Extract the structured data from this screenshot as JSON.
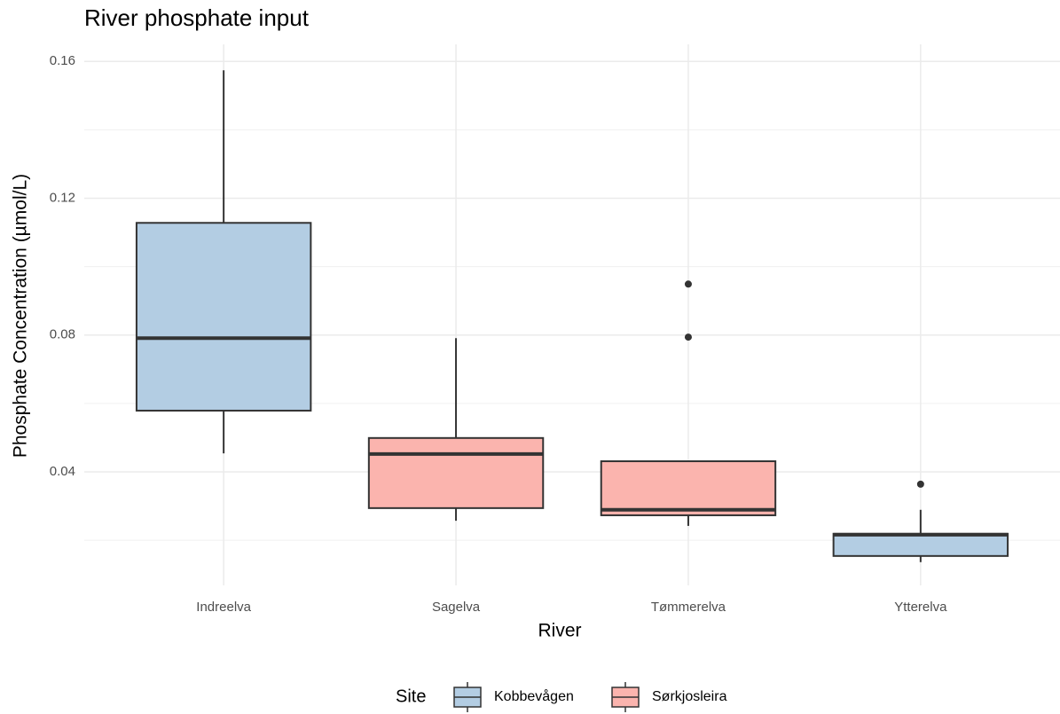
{
  "chart_data": {
    "type": "boxplot",
    "title": "River phosphate input",
    "x_label": "River",
    "y_label": "Phosphate Concentration (µmol/L)",
    "categories": [
      "Indreelva",
      "Sagelva",
      "Tømmerelva",
      "Ytterelva"
    ],
    "legend_title": "Site",
    "legend_position": "bottom",
    "grid": true,
    "ylim": [
      0.0068,
      0.165
    ],
    "yticks": [
      0.04,
      0.08,
      0.12,
      0.16
    ],
    "minor_yticks": [
      0.02,
      0.06,
      0.1,
      0.14
    ],
    "series": [
      {
        "name": "Kobbevågen",
        "color": "#b3cde3",
        "values": [
          {
            "min": 0.0454,
            "q1": 0.0579,
            "median": 0.0791,
            "q3": 0.1128,
            "max": 0.1574,
            "outliers": []
          },
          null,
          null,
          {
            "min": 0.0136,
            "q1": 0.0154,
            "median": 0.0216,
            "q3": 0.0219,
            "max": 0.0289,
            "outliers": [
              0.0364
            ]
          }
        ]
      },
      {
        "name": "Sørkjosleira",
        "color": "#fbb4ae",
        "values": [
          null,
          {
            "min": 0.0257,
            "q1": 0.0294,
            "median": 0.0452,
            "q3": 0.0499,
            "max": 0.0791,
            "outliers": []
          },
          {
            "min": 0.0242,
            "q1": 0.0273,
            "median": 0.0289,
            "q3": 0.0431,
            "max": 0.0431,
            "outliers": [
              0.0794,
              0.0949
            ]
          },
          null
        ]
      }
    ]
  }
}
